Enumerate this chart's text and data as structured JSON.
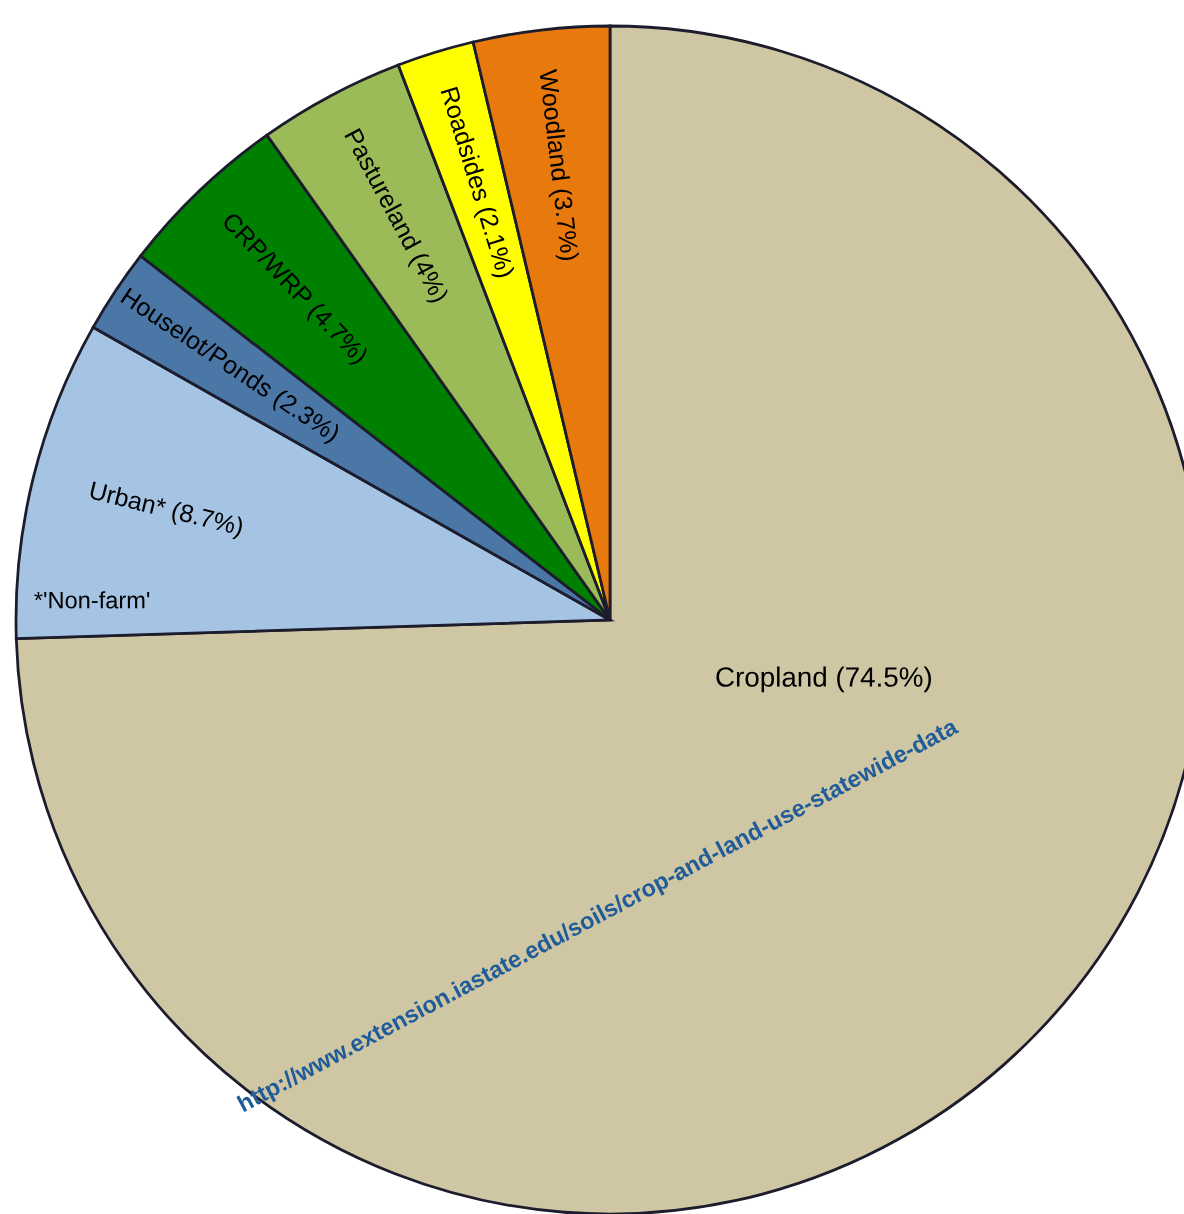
{
  "chart_data": {
    "type": "pie",
    "categories": [
      "Cropland (74.5%)",
      "Urban* (8.7%)",
      "Houselot/Ponds (2.3%)",
      "CRP/WRP (4.7%)",
      "Pastureland (4%)",
      "Roadsides (2.1%)",
      "Woodland (3.7%)"
    ],
    "values": [
      74.5,
      8.7,
      2.3,
      4.7,
      4,
      2.1,
      3.7
    ],
    "colors": [
      "#cfc6a4",
      "#a5c3e3",
      "#4a77a6",
      "#008000",
      "#9bbb59",
      "#ffff00",
      "#e8790c"
    ],
    "annotations": [
      "*'Non-farm'",
      "http://www.extension.iastate.edu/soils/crop-and-land-use-statewide-data"
    ]
  }
}
